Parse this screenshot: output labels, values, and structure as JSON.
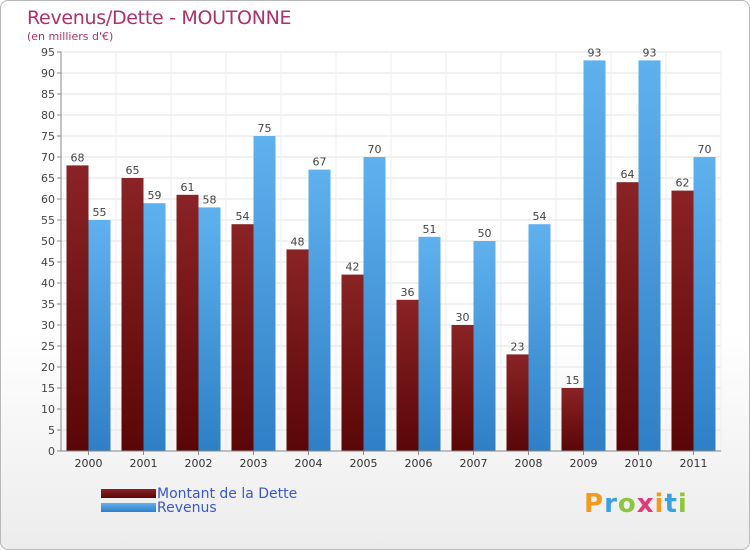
{
  "title": "Revenus/Dette - MOUTONNE",
  "subtitle": "(en milliers d'€)",
  "legend": {
    "debt_label": "Montant de la Dette",
    "revenue_label": "Revenus"
  },
  "logo": {
    "letters": [
      "P",
      "r",
      "o",
      "x",
      "i",
      "t",
      "i"
    ],
    "colors": [
      "#f29a1f",
      "#3aa1e0",
      "#8cc63f",
      "#e23a7a",
      "#f29a1f",
      "#3aa1e0",
      "#8cc63f"
    ]
  },
  "colors": {
    "debt": "#7a0f12",
    "revenue": "#4aa3e6",
    "title": "#b0306a",
    "axis": "#666666"
  },
  "chart_data": {
    "type": "bar",
    "title": "Revenus/Dette - MOUTONNE",
    "subtitle": "(en milliers d'€)",
    "categories": [
      "2000",
      "2001",
      "2002",
      "2003",
      "2004",
      "2005",
      "2006",
      "2007",
      "2008",
      "2009",
      "2010",
      "2011"
    ],
    "series": [
      {
        "name": "Montant de la Dette",
        "values": [
          68,
          65,
          61,
          54,
          48,
          42,
          36,
          30,
          23,
          15,
          64,
          62
        ]
      },
      {
        "name": "Revenus",
        "values": [
          55,
          59,
          58,
          75,
          67,
          70,
          51,
          50,
          54,
          93,
          93,
          70
        ]
      }
    ],
    "ylim": [
      0,
      95
    ],
    "yticks": [
      0,
      5,
      10,
      15,
      20,
      25,
      30,
      35,
      40,
      45,
      50,
      55,
      60,
      65,
      70,
      75,
      80,
      85,
      90,
      95
    ],
    "grid": true,
    "legend_position": "bottom-left"
  }
}
